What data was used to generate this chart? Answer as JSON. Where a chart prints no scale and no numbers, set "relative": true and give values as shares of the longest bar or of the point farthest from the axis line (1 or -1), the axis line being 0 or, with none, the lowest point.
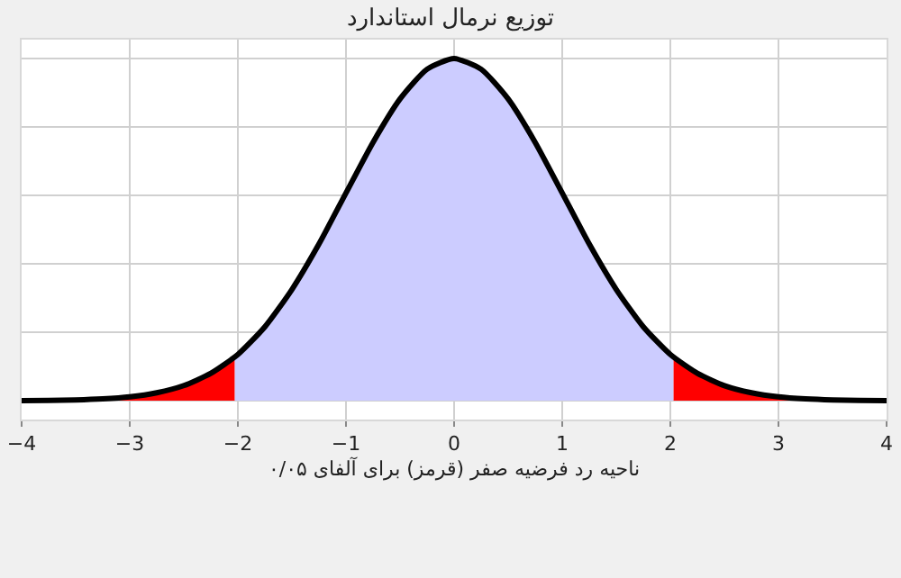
{
  "chart_data": {
    "type": "line",
    "title": "توزیع نرمال استاندارد",
    "xlabel": "ناحیه رد فرضیه صفر (قرمز) برای آلفای ۰/۰۵",
    "relative": true,
    "grid": true,
    "xlim": [
      -4,
      4
    ],
    "xticks": [
      -4,
      -3,
      -2,
      -1,
      0,
      1,
      2,
      3,
      4
    ],
    "marker": "none",
    "line_style": "solid",
    "series": [
      {
        "type": "area",
        "color": "#ccccff",
        "x": [
          -2.03,
          -2,
          -1.75,
          -1.5,
          -1.25,
          -1,
          -0.75,
          -0.5,
          -0.25,
          0,
          0.25,
          0.5,
          0.75,
          1,
          1.25,
          1.5,
          1.75,
          2,
          2.03
        ],
        "values": [
          0.127,
          0.135,
          0.216,
          0.325,
          0.458,
          0.607,
          0.755,
          0.882,
          0.969,
          1,
          0.969,
          0.882,
          0.755,
          0.607,
          0.458,
          0.325,
          0.216,
          0.135,
          0.127
        ]
      },
      {
        "type": "area",
        "color": "#ff0000",
        "x": [
          -4,
          -3.75,
          -3.5,
          -3.25,
          -3,
          -2.75,
          -2.5,
          -2.25,
          -2.03
        ],
        "values": [
          0.0003,
          0.0009,
          0.002,
          0.005,
          0.011,
          0.023,
          0.044,
          0.08,
          0.127
        ]
      },
      {
        "type": "area",
        "color": "#ff0000",
        "x": [
          2.03,
          2.25,
          2.5,
          2.75,
          3,
          3.25,
          3.5,
          3.75,
          4
        ],
        "values": [
          0.127,
          0.08,
          0.044,
          0.023,
          0.011,
          0.005,
          0.002,
          0.0009,
          0.0003
        ]
      },
      {
        "color": "#000000",
        "x": [
          -4,
          -3.75,
          -3.5,
          -3.25,
          -3,
          -2.75,
          -2.5,
          -2.25,
          -2,
          -1.75,
          -1.5,
          -1.25,
          -1,
          -0.75,
          -0.5,
          -0.25,
          0,
          0.25,
          0.5,
          0.75,
          1,
          1.25,
          1.5,
          1.75,
          2,
          2.25,
          2.5,
          2.75,
          3,
          3.25,
          3.5,
          3.75,
          4
        ],
        "values": [
          0.0003,
          0.0009,
          0.002,
          0.005,
          0.011,
          0.023,
          0.044,
          0.08,
          0.135,
          0.216,
          0.325,
          0.458,
          0.607,
          0.755,
          0.882,
          0.969,
          1,
          0.969,
          0.882,
          0.755,
          0.607,
          0.458,
          0.325,
          0.216,
          0.135,
          0.08,
          0.044,
          0.023,
          0.011,
          0.005,
          0.002,
          0.0009,
          0.0003
        ]
      }
    ]
  }
}
